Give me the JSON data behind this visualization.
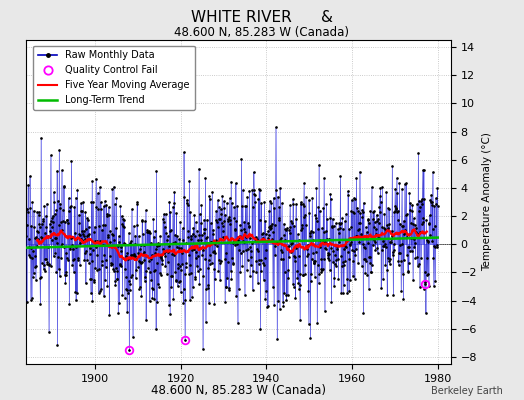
{
  "title": "WHITE RIVER      &",
  "subtitle": "48.600 N, 85.283 W (Canada)",
  "ylabel_right": "Temperature Anomaly (°C)",
  "xlim": [
    1884,
    1983
  ],
  "ylim": [
    -8.5,
    14.5
  ],
  "yticks": [
    -8,
    -6,
    -4,
    -2,
    0,
    2,
    4,
    6,
    8,
    10,
    12,
    14
  ],
  "xticks": [
    1900,
    1920,
    1940,
    1960,
    1980
  ],
  "bg_color": "#e8e8e8",
  "plot_bg_color": "#ffffff",
  "bar_color": "#7777ff",
  "line_color": "#0000bb",
  "ma_color": "#ff0000",
  "trend_color": "#00bb00",
  "qc_color": "#ff00ff",
  "seed": 17,
  "n_years": 96,
  "start_year": 1884,
  "months_per_year": 12,
  "watermark": "Berkeley Earth",
  "noise_std": 2.2,
  "qc_month_indices": [
    288,
    444,
    1116
  ],
  "qc_values": [
    -7.5,
    -6.8,
    -2.8
  ]
}
